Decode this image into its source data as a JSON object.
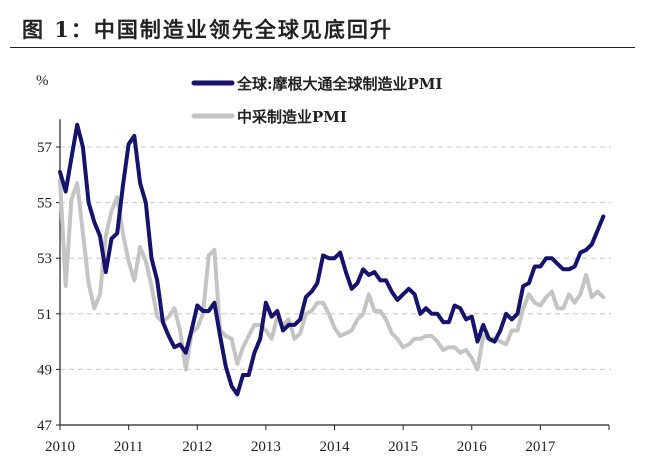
{
  "chart_data": {
    "type": "line",
    "title": "图 1：中国制造业领先全球见底回升",
    "ylabel": "%",
    "xlabel": "",
    "ylim": [
      47,
      58
    ],
    "xlim": [
      2010,
      2018
    ],
    "yticks": [
      47,
      49,
      51,
      53,
      55,
      57
    ],
    "xticks": [
      2010,
      2011,
      2012,
      2013,
      2014,
      2015,
      2016,
      2017
    ],
    "grid": "horizontal dashed",
    "legend_position": "top",
    "x_start": "2010-01",
    "frequency": "monthly",
    "series": [
      {
        "name": "全球:摩根大通全球制造业PMI",
        "color": "#15136b",
        "values": [
          56.1,
          55.4,
          56.6,
          57.8,
          57.0,
          55.0,
          54.3,
          53.8,
          52.5,
          53.7,
          53.9,
          55.6,
          57.1,
          57.4,
          55.7,
          55.0,
          53.0,
          52.2,
          50.7,
          50.2,
          49.8,
          49.9,
          49.6,
          50.4,
          51.3,
          51.1,
          51.1,
          51.4,
          50.2,
          49.1,
          48.4,
          48.1,
          48.8,
          48.8,
          49.6,
          50.1,
          51.4,
          50.9,
          51.1,
          50.4,
          50.6,
          50.6,
          50.8,
          51.6,
          51.8,
          52.1,
          53.1,
          53.0,
          53.0,
          53.2,
          52.5,
          51.9,
          52.1,
          52.6,
          52.4,
          52.5,
          52.2,
          52.2,
          51.8,
          51.5,
          51.7,
          51.9,
          51.7,
          51.0,
          51.2,
          51.0,
          51.0,
          50.7,
          50.7,
          51.3,
          51.2,
          50.8,
          50.9,
          50.0,
          50.6,
          50.1,
          50.0,
          50.4,
          51.0,
          50.8,
          51.0,
          52.0,
          52.1,
          52.7,
          52.7,
          53.0,
          53.0,
          52.8,
          52.6,
          52.6,
          52.7,
          53.2,
          53.3,
          53.5,
          54.0,
          54.5
        ]
      },
      {
        "name": "中采制造业PMI",
        "color": "#c4c4c4",
        "values": [
          55.8,
          52.0,
          55.1,
          55.7,
          53.9,
          52.1,
          51.2,
          51.7,
          53.8,
          54.7,
          55.2,
          53.9,
          52.9,
          52.2,
          53.4,
          52.9,
          52.0,
          50.9,
          50.7,
          50.9,
          51.2,
          50.4,
          49.0,
          50.3,
          50.5,
          51.0,
          53.1,
          53.3,
          50.4,
          50.2,
          50.1,
          49.2,
          49.8,
          50.2,
          50.6,
          50.6,
          50.4,
          50.1,
          50.9,
          50.6,
          50.8,
          50.1,
          50.3,
          51.0,
          51.1,
          51.4,
          51.4,
          51.0,
          50.5,
          50.2,
          50.3,
          50.4,
          50.8,
          51.0,
          51.7,
          51.1,
          51.1,
          50.8,
          50.3,
          50.1,
          49.8,
          49.9,
          50.1,
          50.1,
          50.2,
          50.2,
          50.0,
          49.7,
          49.8,
          49.8,
          49.6,
          49.7,
          49.4,
          49.0,
          50.2,
          50.1,
          50.1,
          50.0,
          49.9,
          50.4,
          50.4,
          51.2,
          51.7,
          51.4,
          51.3,
          51.6,
          51.8,
          51.2,
          51.2,
          51.7,
          51.4,
          51.7,
          52.4,
          51.6,
          51.8,
          51.6
        ]
      }
    ]
  }
}
